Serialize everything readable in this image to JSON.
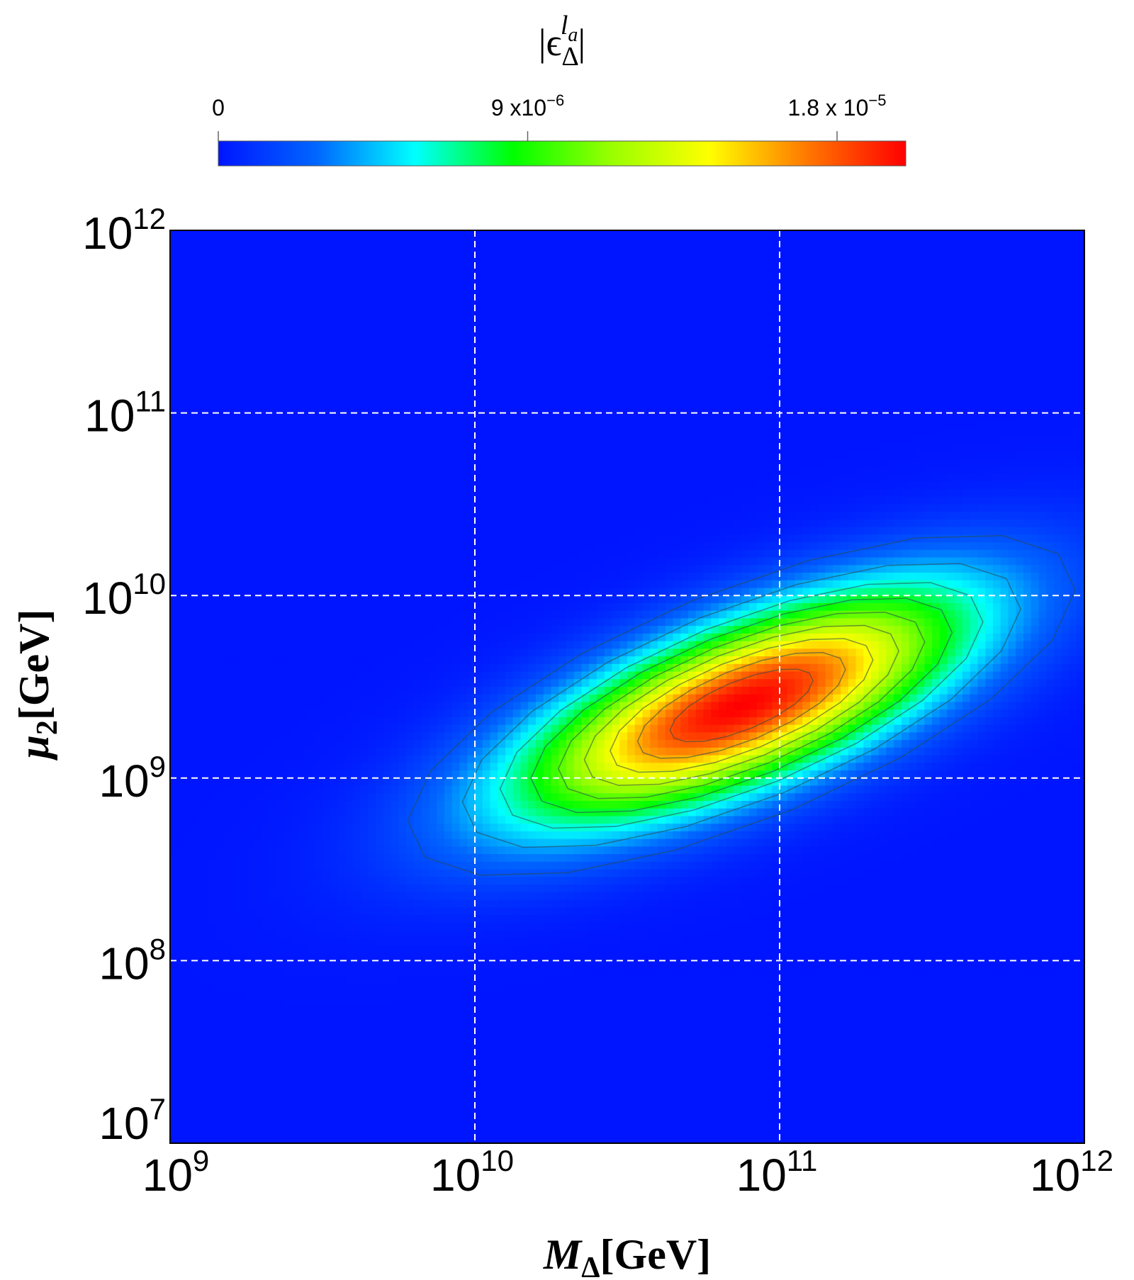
{
  "chart_data": {
    "type": "heatmap",
    "title": "",
    "colorbar": {
      "label_base": "|ϵ",
      "label_sub": "Δ",
      "label_sup": "l",
      "label_sup_sub": "a",
      "label_close": "|",
      "range": [
        0,
        2e-05
      ],
      "ticks": [
        {
          "value": 0,
          "mantissa": "0",
          "exponent": ""
        },
        {
          "value": 9e-06,
          "mantissa": "9 x10",
          "exponent": "−6"
        },
        {
          "value": 1.8e-05,
          "mantissa": "1.8 x 10",
          "exponent": "−5"
        }
      ],
      "colormap": [
        "#0015ff",
        "#0066ff",
        "#00ffff",
        "#00ff00",
        "#99ff00",
        "#ffff00",
        "#ff7700",
        "#ff0000"
      ]
    },
    "x": {
      "label_main": "M",
      "label_sub": "Δ",
      "label_unit": "[GeV]",
      "scale": "log",
      "range": [
        1000000000.0,
        1000000000000.0
      ],
      "ticks": [
        {
          "value": 1000000000.0,
          "base": "10",
          "exp": "9"
        },
        {
          "value": 10000000000.0,
          "base": "10",
          "exp": "10"
        },
        {
          "value": 100000000000.0,
          "base": "10",
          "exp": "11"
        },
        {
          "value": 1000000000000.0,
          "base": "10",
          "exp": "12"
        }
      ]
    },
    "y": {
      "label_main": "μ",
      "label_sub": "2",
      "label_unit": "[GeV]",
      "scale": "log",
      "range": [
        10000000.0,
        1000000000000.0
      ],
      "ticks": [
        {
          "value": 10000000.0,
          "base": "10",
          "exp": "7"
        },
        {
          "value": 100000000.0,
          "base": "10",
          "exp": "8"
        },
        {
          "value": 1000000000.0,
          "base": "10",
          "exp": "9"
        },
        {
          "value": 10000000000.0,
          "base": "10",
          "exp": "10"
        },
        {
          "value": 100000000000.0,
          "base": "10",
          "exp": "11"
        },
        {
          "value": 1000000000000.0,
          "base": "10",
          "exp": "12"
        }
      ]
    },
    "grid": {
      "x": [
        10000000000.0,
        100000000000.0
      ],
      "y": [
        100000000.0,
        1000000000.0,
        10000000000.0,
        100000000000.0
      ],
      "style": "dashed white"
    },
    "peak": {
      "x": 75000000000.0,
      "y": 2500000000.0,
      "value": 2e-05
    },
    "contour_levels": [
      2e-06,
      4e-06,
      6e-06,
      8e-06,
      1e-05,
      1.2e-05,
      1.4e-05,
      1.6e-05,
      1.8e-05
    ],
    "legend": "colorbar top"
  }
}
